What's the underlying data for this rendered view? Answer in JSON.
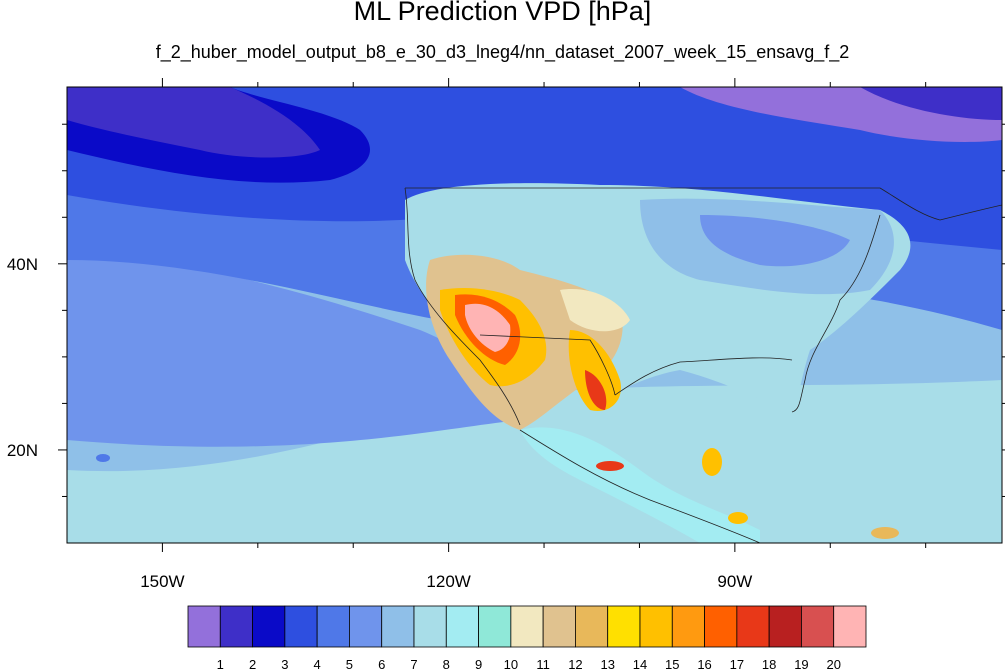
{
  "figure": {
    "title": "ML Prediction VPD [hPa]",
    "subtitle": "f_2_huber_model_output_b8_e_30_d3_lneg4/nn_dataset_2007_week_15_ensavg_f_2"
  },
  "map": {
    "lon_range": [
      -160,
      -62
    ],
    "lat_range": [
      10,
      59
    ],
    "lon_ticks": [
      {
        "value": -150,
        "label": "150W"
      },
      {
        "value": -120,
        "label": "120W"
      },
      {
        "value": -90,
        "label": "90W"
      }
    ],
    "lat_ticks": [
      {
        "value": 40,
        "label": "40N"
      },
      {
        "value": 20,
        "label": "20N"
      }
    ],
    "background_ocean_color": "#8fc0e8"
  },
  "colorbar": {
    "labels": [
      "1",
      "2",
      "3",
      "4",
      "5",
      "6",
      "7",
      "8",
      "9",
      "10",
      "11",
      "12",
      "13",
      "14",
      "15",
      "16",
      "17",
      "18",
      "19",
      "20"
    ],
    "colors": [
      "#9370db",
      "#3e2fc8",
      "#0a0ac8",
      "#2e4fe0",
      "#4f78e8",
      "#6f94ec",
      "#8fbfe8",
      "#a8dde8",
      "#a3ecf2",
      "#8fe8d8",
      "#f2e8c0",
      "#e0c28f",
      "#e8b85a",
      "#ffe000",
      "#ffc000",
      "#ff9a10",
      "#ff6000",
      "#e83818",
      "#b82020",
      "#d85050",
      "#ffb4b4"
    ]
  }
}
